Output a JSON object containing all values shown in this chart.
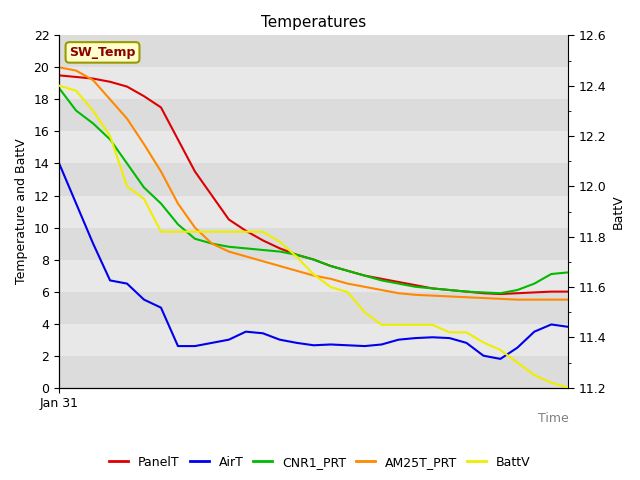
{
  "title": "Temperatures",
  "xlabel": "Time",
  "ylabel_left": "Temperature and BattV",
  "ylabel_right": "BattV",
  "annotation_text": "SW_Temp",
  "annotation_color": "#8B0000",
  "annotation_bg": "#FFFFCC",
  "annotation_border": "#999900",
  "xlim": [
    0,
    30
  ],
  "ylim_left": [
    0,
    22
  ],
  "ylim_right": [
    11.2,
    12.6
  ],
  "yticks_left": [
    0,
    2,
    4,
    6,
    8,
    10,
    12,
    14,
    16,
    18,
    20,
    22
  ],
  "yticks_right_major": [
    11.2,
    11.4,
    11.6,
    11.8,
    12.0,
    12.2,
    12.4,
    12.6
  ],
  "yticks_right_minor": [
    11.3,
    11.5,
    11.7,
    11.9,
    12.1,
    12.3,
    12.5
  ],
  "xticklabels": [
    "Jan 31"
  ],
  "xtick_positions": [
    0
  ],
  "band_colors": [
    "#DCDCDC",
    "#E8E8E8"
  ],
  "grid_color": "#FFFFFF",
  "series": {
    "PanelT": {
      "color": "#DD0000",
      "x": [
        0,
        1,
        2,
        3,
        4,
        5,
        6,
        7,
        8,
        9,
        10,
        11,
        12,
        13,
        14,
        15,
        16,
        17,
        18,
        19,
        20,
        21,
        22,
        23,
        24,
        25,
        26,
        27,
        28,
        29,
        30
      ],
      "y": [
        19.5,
        19.4,
        19.3,
        19.1,
        18.8,
        18.2,
        17.5,
        15.5,
        13.5,
        12.0,
        10.5,
        9.8,
        9.2,
        8.7,
        8.3,
        8.0,
        7.6,
        7.3,
        7.0,
        6.8,
        6.6,
        6.4,
        6.2,
        6.1,
        6.0,
        5.9,
        5.85,
        5.9,
        5.95,
        6.0,
        6.0
      ]
    },
    "AirT": {
      "color": "#0000EE",
      "x": [
        0,
        1,
        2,
        3,
        4,
        5,
        6,
        7,
        8,
        9,
        10,
        11,
        12,
        13,
        14,
        15,
        16,
        17,
        18,
        19,
        20,
        21,
        22,
        23,
        24,
        25,
        26,
        27,
        28,
        29,
        30
      ],
      "y": [
        14.0,
        11.5,
        9.0,
        6.7,
        6.5,
        5.5,
        5.0,
        2.6,
        2.6,
        2.8,
        3.0,
        3.5,
        3.4,
        3.0,
        2.8,
        2.65,
        2.7,
        2.65,
        2.6,
        2.7,
        3.0,
        3.1,
        3.15,
        3.1,
        2.8,
        2.0,
        1.8,
        2.5,
        3.5,
        3.95,
        3.8
      ]
    },
    "CNR1_PRT": {
      "color": "#00BB00",
      "x": [
        0,
        1,
        2,
        3,
        4,
        5,
        6,
        7,
        8,
        9,
        10,
        11,
        12,
        13,
        14,
        15,
        16,
        17,
        18,
        19,
        20,
        21,
        22,
        23,
        24,
        25,
        26,
        27,
        28,
        29,
        30
      ],
      "y": [
        18.7,
        17.3,
        16.5,
        15.5,
        14.0,
        12.5,
        11.5,
        10.2,
        9.3,
        9.0,
        8.8,
        8.7,
        8.6,
        8.5,
        8.3,
        8.0,
        7.6,
        7.3,
        7.0,
        6.7,
        6.5,
        6.3,
        6.2,
        6.1,
        6.0,
        5.95,
        5.9,
        6.1,
        6.5,
        7.1,
        7.2
      ]
    },
    "AM25T_PRT": {
      "color": "#FF8800",
      "x": [
        0,
        1,
        2,
        3,
        4,
        5,
        6,
        7,
        8,
        9,
        10,
        11,
        12,
        13,
        14,
        15,
        16,
        17,
        18,
        19,
        20,
        21,
        22,
        23,
        24,
        25,
        26,
        27,
        28,
        29,
        30
      ],
      "y": [
        20.0,
        19.8,
        19.2,
        18.0,
        16.8,
        15.2,
        13.5,
        11.5,
        10.0,
        9.0,
        8.5,
        8.2,
        7.9,
        7.6,
        7.3,
        7.0,
        6.8,
        6.5,
        6.3,
        6.1,
        5.9,
        5.8,
        5.75,
        5.7,
        5.65,
        5.6,
        5.55,
        5.5,
        5.5,
        5.5,
        5.5
      ]
    },
    "BattV": {
      "color": "#EEEE00",
      "x": [
        0,
        1,
        2,
        3,
        4,
        5,
        6,
        7,
        8,
        9,
        10,
        11,
        12,
        13,
        14,
        15,
        16,
        17,
        18,
        19,
        20,
        21,
        22,
        23,
        24,
        25,
        26,
        27,
        28,
        29,
        30
      ],
      "y_right": [
        12.4,
        12.38,
        12.3,
        12.2,
        12.0,
        11.95,
        11.82,
        11.82,
        11.82,
        11.82,
        11.82,
        11.82,
        11.82,
        11.78,
        11.72,
        11.65,
        11.6,
        11.58,
        11.5,
        11.45,
        11.45,
        11.45,
        11.45,
        11.42,
        11.42,
        11.38,
        11.35,
        11.3,
        11.25,
        11.22,
        11.2
      ]
    }
  },
  "legend_entries": [
    {
      "label": "PanelT",
      "color": "#DD0000"
    },
    {
      "label": "AirT",
      "color": "#0000EE"
    },
    {
      "label": "CNR1_PRT",
      "color": "#00BB00"
    },
    {
      "label": "AM25T_PRT",
      "color": "#FF8800"
    },
    {
      "label": "BattV",
      "color": "#EEEE00"
    }
  ]
}
